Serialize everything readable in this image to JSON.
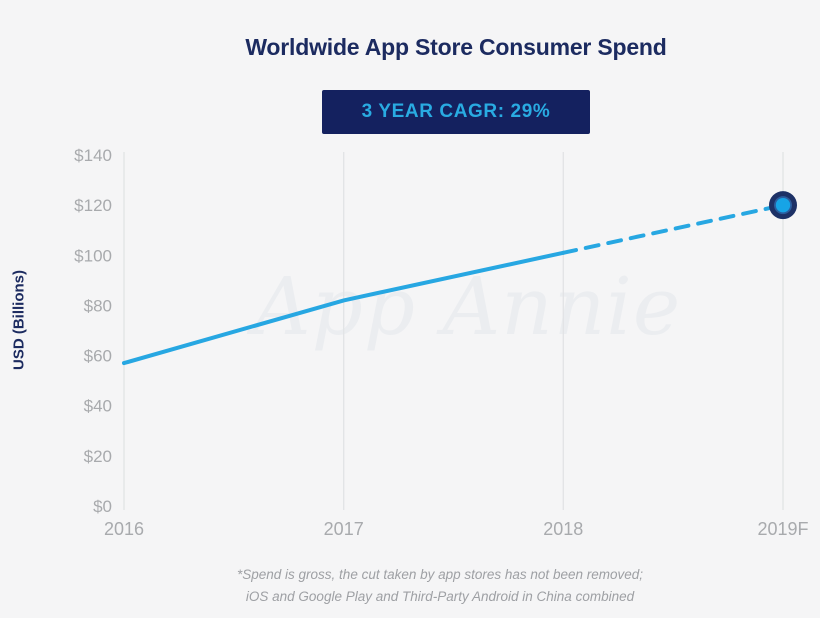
{
  "page": {
    "background": "#f5f5f6"
  },
  "header": {
    "title": "Worldwide App Store Consumer Spend",
    "badge": {
      "label": "3 YEAR CAGR: 29%",
      "bg": "#14215f",
      "color": "#29abe2"
    }
  },
  "watermark": "App Annie",
  "footer": {
    "line1": "*Spend is gross, the cut taken by app stores has not been removed;",
    "line2": "iOS and Google Play and Third-Party Android in China combined"
  },
  "chart_data": {
    "type": "line",
    "title": "Worldwide App Store Consumer Spend",
    "categories": [
      "2016",
      "2017",
      "2018",
      "2019F"
    ],
    "series": [
      {
        "name": "Worldwide App Store Consumer Spend",
        "values": [
          57,
          82,
          101,
          120
        ]
      }
    ],
    "forecast_start_index": 2,
    "annotation": "3 YEAR CAGR: 29%",
    "xlabel": "",
    "ylabel": "USD (Billions)",
    "ylim": [
      0,
      140
    ],
    "ytick_step": 20,
    "ytick_labels": [
      "$0",
      "$20",
      "$40",
      "$60",
      "$80",
      "$100",
      "$120",
      "$140"
    ],
    "grid": "vertical-only",
    "legend": "none",
    "colors": {
      "line": "#27a7e2",
      "gridline": "#e2e3e5",
      "tick_label": "#a8aaad",
      "marker_outer": "#1d3166",
      "marker_mid": "#2b5d9e",
      "marker_inner": "#17a4e6"
    }
  }
}
